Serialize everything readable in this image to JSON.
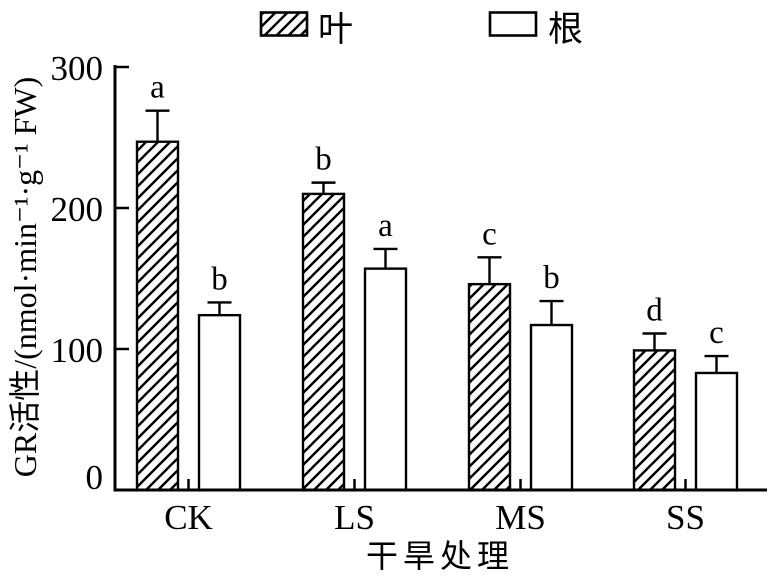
{
  "chart_data": {
    "type": "bar",
    "categories": [
      "CK",
      "LS",
      "MS",
      "SS"
    ],
    "series": [
      {
        "key": "leaf",
        "name": "叶",
        "style": "hatched",
        "values": [
          247,
          210,
          146,
          99
        ],
        "errors": [
          22,
          8,
          19,
          12
        ],
        "sig_letters": [
          "a",
          "b",
          "c",
          "d"
        ]
      },
      {
        "key": "root",
        "name": "根",
        "style": "open",
        "values": [
          124,
          157,
          117,
          83
        ],
        "errors": [
          9,
          14,
          17,
          12
        ],
        "sig_letters": [
          "b",
          "a",
          "b",
          "c"
        ]
      }
    ],
    "xlabel": "干旱处理",
    "ylabel": "GR活性/(nmol·min⁻¹·g⁻¹ FW)",
    "yticks": [
      0,
      100,
      200,
      300
    ],
    "ylim": [
      0,
      300
    ],
    "legend_position": "top",
    "grid": false,
    "error_bars": "upper",
    "colors": {
      "stroke": "#000000",
      "background": "#ffffff",
      "bar_fill_open": "#ffffff"
    }
  }
}
